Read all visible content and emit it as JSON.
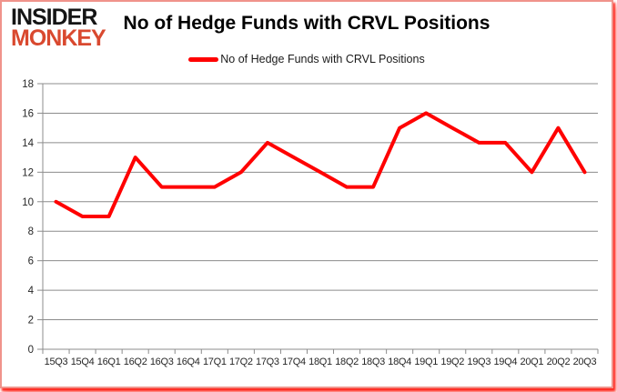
{
  "brand": {
    "line1": "INSIDER",
    "line2": "MONKEY",
    "line1_color": "#151515",
    "line2_color": "#d9492f"
  },
  "header": {
    "title": "No of Hedge Funds with CRVL Positions"
  },
  "legend": {
    "label": "No of Hedge Funds with CRVL Positions",
    "swatch_color": "#ff0000"
  },
  "chart_data": {
    "type": "line",
    "title": "No of Hedge Funds with CRVL Positions",
    "categories": [
      "15Q3",
      "15Q4",
      "16Q1",
      "16Q2",
      "16Q3",
      "16Q4",
      "17Q1",
      "17Q2",
      "17Q3",
      "17Q4",
      "18Q1",
      "18Q2",
      "18Q3",
      "18Q4",
      "19Q1",
      "19Q2",
      "19Q3",
      "19Q4",
      "20Q1",
      "20Q2",
      "20Q3"
    ],
    "series": [
      {
        "name": "No of Hedge Funds with CRVL Positions",
        "color": "#ff0000",
        "values": [
          10,
          9,
          9,
          13,
          11,
          11,
          11,
          12,
          14,
          13,
          12,
          11,
          11,
          15,
          16,
          15,
          14,
          14,
          12,
          15,
          12
        ]
      }
    ],
    "xlabel": "",
    "ylabel": "",
    "ylim": [
      0,
      18
    ],
    "ytick_step": 2,
    "y_ticks": [
      0,
      2,
      4,
      6,
      8,
      10,
      12,
      14,
      16,
      18
    ],
    "grid": "horizontal",
    "gridline_color": "#8c8c8c",
    "axis_text_color": "#262626",
    "legend_position": "top"
  }
}
